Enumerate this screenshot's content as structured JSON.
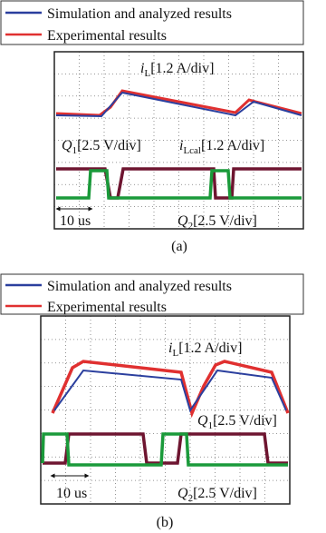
{
  "panels": [
    {
      "legend": [
        "Simulation and analyzed results",
        "Experimental results"
      ],
      "annotations": [
        {
          "symbol": "i",
          "subscript": "L",
          "text": "[1.2 A/div]"
        },
        {
          "symbol": "Q",
          "subscript": "1",
          "text": "[2.5 V/div]"
        },
        {
          "symbol": "i",
          "subscript": "Lcal",
          "text": "[1.2 A/div]"
        },
        {
          "text": "10 us"
        },
        {
          "symbol": "Q",
          "subscript": "2",
          "text": "[2.5 V/div]"
        }
      ],
      "caption": "(a)"
    },
    {
      "legend": [
        "Simulation and analyzed results",
        "Experimental results"
      ],
      "annotations": [
        {
          "symbol": "i",
          "subscript": "L",
          "text": "[1.2 A/div]"
        },
        {
          "symbol": "Q",
          "subscript": "1",
          "text": "[2.5 V/div]"
        },
        {
          "text": "10 us"
        },
        {
          "symbol": "Q",
          "subscript": "2",
          "text": "[2.5 V/div]"
        }
      ],
      "caption": "(b)"
    }
  ]
}
